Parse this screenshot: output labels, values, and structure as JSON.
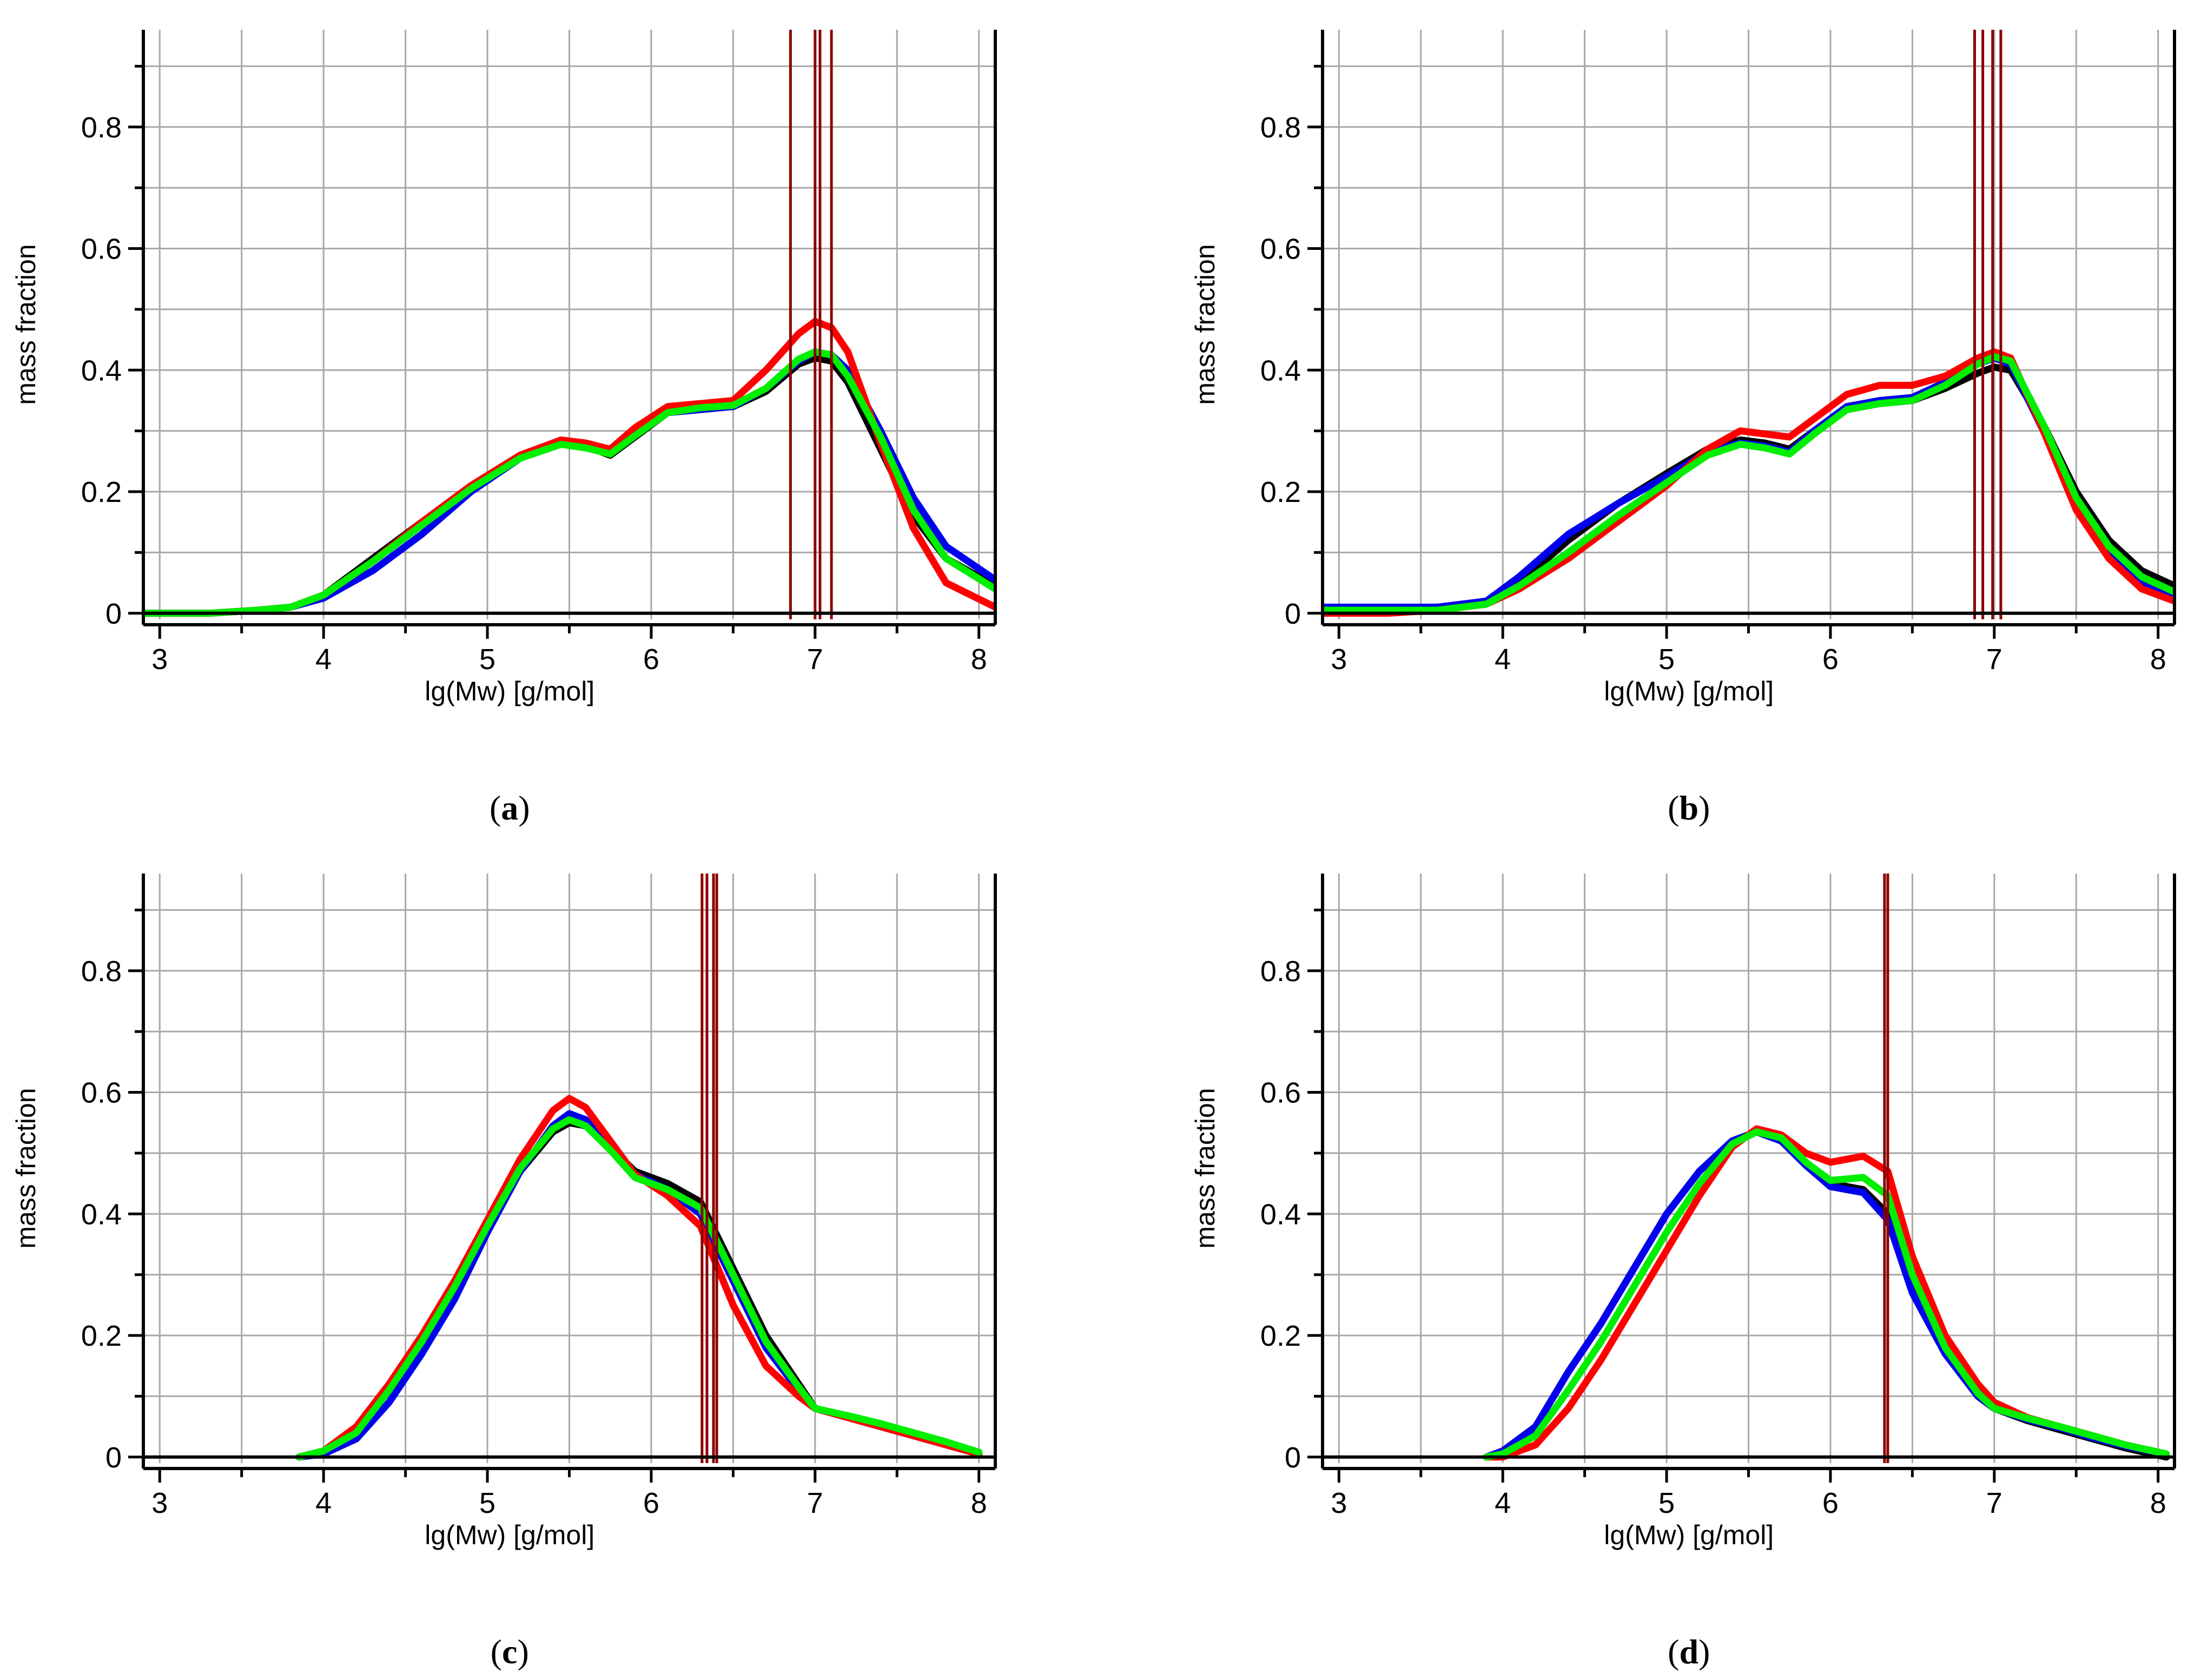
{
  "chart_data": [
    {
      "type": "line",
      "panel_label": "(a)",
      "panel_letter": "a",
      "xlabel": "lg(Mw)  [g/mol]",
      "ylabel": "mass fraction",
      "xlim": [
        2.9,
        8.1
      ],
      "ylim": [
        -0.01,
        0.96
      ],
      "xticks": [
        3,
        4,
        5,
        6,
        7,
        8
      ],
      "yticks": [
        0,
        0.2,
        0.4,
        0.6,
        0.8
      ],
      "grid": true,
      "vertical_lines": [
        6.85,
        7.0,
        7.03,
        7.1
      ],
      "series": [
        {
          "name": "black",
          "color": "#000000",
          "x": [
            2.9,
            3.3,
            3.6,
            3.8,
            4.0,
            4.3,
            4.6,
            4.9,
            5.2,
            5.45,
            5.6,
            5.75,
            5.9,
            6.1,
            6.3,
            6.5,
            6.7,
            6.9,
            7.0,
            7.1,
            7.2,
            7.4,
            7.6,
            7.8,
            8.1
          ],
          "y": [
            0.0,
            0.0,
            0.005,
            0.01,
            0.03,
            0.09,
            0.15,
            0.21,
            0.26,
            0.285,
            0.275,
            0.26,
            0.29,
            0.33,
            0.34,
            0.34,
            0.365,
            0.41,
            0.42,
            0.415,
            0.38,
            0.27,
            0.16,
            0.09,
            0.045
          ]
        },
        {
          "name": "blue",
          "color": "#0000ee",
          "x": [
            2.9,
            3.3,
            3.6,
            3.8,
            4.0,
            4.3,
            4.6,
            4.9,
            5.2,
            5.45,
            5.6,
            5.75,
            5.9,
            6.1,
            6.3,
            6.5,
            6.7,
            6.9,
            7.0,
            7.1,
            7.2,
            7.4,
            7.6,
            7.8,
            8.1
          ],
          "y": [
            0.0,
            0.0,
            0.005,
            0.01,
            0.025,
            0.07,
            0.13,
            0.2,
            0.255,
            0.28,
            0.275,
            0.265,
            0.295,
            0.33,
            0.335,
            0.34,
            0.37,
            0.415,
            0.43,
            0.425,
            0.4,
            0.3,
            0.19,
            0.11,
            0.055
          ]
        },
        {
          "name": "red",
          "color": "#ff0000",
          "x": [
            2.9,
            3.3,
            3.6,
            3.8,
            4.0,
            4.3,
            4.6,
            4.9,
            5.2,
            5.45,
            5.6,
            5.75,
            5.9,
            6.1,
            6.3,
            6.5,
            6.7,
            6.9,
            7.0,
            7.1,
            7.2,
            7.4,
            7.6,
            7.8,
            8.1
          ],
          "y": [
            0.0,
            0.0,
            0.005,
            0.01,
            0.03,
            0.085,
            0.15,
            0.21,
            0.26,
            0.285,
            0.28,
            0.27,
            0.305,
            0.34,
            0.345,
            0.35,
            0.4,
            0.46,
            0.48,
            0.47,
            0.43,
            0.28,
            0.14,
            0.05,
            0.01
          ]
        },
        {
          "name": "green",
          "color": "#00ee00",
          "x": [
            2.9,
            3.3,
            3.6,
            3.8,
            4.0,
            4.3,
            4.6,
            4.9,
            5.2,
            5.45,
            5.6,
            5.75,
            5.9,
            6.1,
            6.3,
            6.5,
            6.7,
            6.9,
            7.0,
            7.1,
            7.2,
            7.4,
            7.6,
            7.8,
            8.1
          ],
          "y": [
            0.0,
            0.0,
            0.005,
            0.01,
            0.03,
            0.085,
            0.145,
            0.205,
            0.255,
            0.278,
            0.272,
            0.262,
            0.292,
            0.33,
            0.338,
            0.342,
            0.37,
            0.418,
            0.43,
            0.425,
            0.39,
            0.29,
            0.17,
            0.09,
            0.04
          ]
        }
      ]
    },
    {
      "type": "line",
      "panel_label": "(b)",
      "panel_letter": "b",
      "xlabel": "lg(Mw)  [g/mol]",
      "ylabel": "mass fraction",
      "xlim": [
        2.9,
        8.1
      ],
      "ylim": [
        -0.01,
        0.96
      ],
      "xticks": [
        3,
        4,
        5,
        6,
        7,
        8
      ],
      "yticks": [
        0,
        0.2,
        0.4,
        0.6,
        0.8
      ],
      "grid": true,
      "vertical_lines": [
        6.88,
        6.93,
        6.99,
        7.04
      ],
      "series": [
        {
          "name": "black",
          "color": "#000000",
          "x": [
            2.9,
            3.3,
            3.6,
            3.9,
            4.1,
            4.4,
            4.7,
            5.0,
            5.25,
            5.45,
            5.6,
            5.75,
            5.9,
            6.1,
            6.3,
            6.5,
            6.7,
            6.9,
            7.0,
            7.1,
            7.3,
            7.5,
            7.7,
            7.9,
            8.1
          ],
          "y": [
            0.005,
            0.005,
            0.005,
            0.015,
            0.05,
            0.12,
            0.18,
            0.23,
            0.27,
            0.285,
            0.28,
            0.27,
            0.3,
            0.335,
            0.345,
            0.35,
            0.37,
            0.395,
            0.405,
            0.4,
            0.31,
            0.2,
            0.12,
            0.07,
            0.045
          ]
        },
        {
          "name": "blue",
          "color": "#0000ee",
          "x": [
            2.9,
            3.3,
            3.6,
            3.9,
            4.1,
            4.4,
            4.7,
            5.0,
            5.25,
            5.45,
            5.6,
            5.75,
            5.9,
            6.1,
            6.3,
            6.5,
            6.7,
            6.9,
            7.0,
            7.1,
            7.3,
            7.5,
            7.7,
            7.9,
            8.1
          ],
          "y": [
            0.01,
            0.01,
            0.01,
            0.02,
            0.06,
            0.13,
            0.18,
            0.225,
            0.265,
            0.28,
            0.275,
            0.265,
            0.3,
            0.34,
            0.35,
            0.355,
            0.38,
            0.41,
            0.42,
            0.41,
            0.3,
            0.18,
            0.1,
            0.05,
            0.03
          ]
        },
        {
          "name": "red",
          "color": "#ff0000",
          "x": [
            2.9,
            3.3,
            3.6,
            3.9,
            4.1,
            4.4,
            4.7,
            5.0,
            5.25,
            5.45,
            5.6,
            5.75,
            5.9,
            6.1,
            6.3,
            6.5,
            6.7,
            6.9,
            7.0,
            7.1,
            7.3,
            7.5,
            7.7,
            7.9,
            8.1
          ],
          "y": [
            0.0,
            0.0,
            0.005,
            0.015,
            0.04,
            0.09,
            0.15,
            0.21,
            0.27,
            0.3,
            0.295,
            0.29,
            0.32,
            0.36,
            0.375,
            0.375,
            0.39,
            0.42,
            0.43,
            0.42,
            0.3,
            0.17,
            0.09,
            0.04,
            0.02
          ]
        },
        {
          "name": "green",
          "color": "#00ee00",
          "x": [
            2.9,
            3.3,
            3.6,
            3.9,
            4.1,
            4.4,
            4.7,
            5.0,
            5.25,
            5.45,
            5.6,
            5.75,
            5.9,
            6.1,
            6.3,
            6.5,
            6.7,
            6.9,
            7.0,
            7.1,
            7.3,
            7.5,
            7.7,
            7.9,
            8.1
          ],
          "y": [
            0.005,
            0.005,
            0.005,
            0.015,
            0.045,
            0.1,
            0.16,
            0.215,
            0.26,
            0.278,
            0.272,
            0.262,
            0.295,
            0.335,
            0.345,
            0.35,
            0.375,
            0.41,
            0.422,
            0.415,
            0.31,
            0.19,
            0.11,
            0.06,
            0.035
          ]
        }
      ]
    },
    {
      "type": "line",
      "panel_label": "(c)",
      "panel_letter": "c",
      "xlabel": "lg(Mw)  [g/mol]",
      "ylabel": "mass fraction",
      "xlim": [
        2.9,
        8.1
      ],
      "ylim": [
        -0.01,
        0.96
      ],
      "xticks": [
        3,
        4,
        5,
        6,
        7,
        8
      ],
      "yticks": [
        0,
        0.2,
        0.4,
        0.6,
        0.8
      ],
      "grid": true,
      "vertical_lines": [
        6.31,
        6.34,
        6.38,
        6.4
      ],
      "series": [
        {
          "name": "black",
          "color": "#000000",
          "x": [
            3.85,
            4.0,
            4.2,
            4.4,
            4.6,
            4.8,
            5.0,
            5.2,
            5.4,
            5.5,
            5.6,
            5.75,
            5.9,
            6.1,
            6.3,
            6.5,
            6.7,
            6.9,
            7.0,
            7.2,
            7.4,
            7.6,
            7.8,
            8.0
          ],
          "y": [
            0.0,
            0.01,
            0.04,
            0.11,
            0.19,
            0.28,
            0.38,
            0.47,
            0.535,
            0.55,
            0.545,
            0.51,
            0.47,
            0.45,
            0.42,
            0.31,
            0.2,
            0.12,
            0.08,
            0.065,
            0.05,
            0.035,
            0.02,
            0.005
          ]
        },
        {
          "name": "blue",
          "color": "#0000ee",
          "x": [
            3.85,
            4.0,
            4.2,
            4.4,
            4.6,
            4.8,
            5.0,
            5.2,
            5.4,
            5.5,
            5.6,
            5.75,
            5.9,
            6.1,
            6.3,
            6.5,
            6.7,
            6.9,
            7.0,
            7.2,
            7.4,
            7.6,
            7.8,
            8.0
          ],
          "y": [
            0.0,
            0.005,
            0.03,
            0.09,
            0.17,
            0.26,
            0.37,
            0.47,
            0.545,
            0.565,
            0.555,
            0.51,
            0.465,
            0.44,
            0.4,
            0.29,
            0.18,
            0.11,
            0.08,
            0.065,
            0.05,
            0.035,
            0.02,
            0.005
          ]
        },
        {
          "name": "red",
          "color": "#ff0000",
          "x": [
            3.85,
            4.0,
            4.2,
            4.4,
            4.6,
            4.8,
            5.0,
            5.2,
            5.4,
            5.5,
            5.6,
            5.75,
            5.9,
            6.1,
            6.3,
            6.5,
            6.7,
            6.9,
            7.0,
            7.2,
            7.4,
            7.6,
            7.8,
            8.0
          ],
          "y": [
            0.0,
            0.01,
            0.05,
            0.12,
            0.2,
            0.29,
            0.39,
            0.49,
            0.57,
            0.59,
            0.575,
            0.52,
            0.465,
            0.43,
            0.38,
            0.25,
            0.15,
            0.1,
            0.08,
            0.065,
            0.05,
            0.035,
            0.02,
            0.005
          ]
        },
        {
          "name": "green",
          "color": "#00ee00",
          "x": [
            3.85,
            4.0,
            4.2,
            4.4,
            4.6,
            4.8,
            5.0,
            5.2,
            5.4,
            5.5,
            5.6,
            5.75,
            5.9,
            6.1,
            6.3,
            6.5,
            6.7,
            6.9,
            7.0,
            7.2,
            7.4,
            7.6,
            7.8,
            8.0
          ],
          "y": [
            0.0,
            0.01,
            0.04,
            0.11,
            0.19,
            0.28,
            0.38,
            0.475,
            0.54,
            0.555,
            0.545,
            0.505,
            0.46,
            0.44,
            0.41,
            0.3,
            0.19,
            0.115,
            0.08,
            0.068,
            0.055,
            0.04,
            0.025,
            0.008
          ]
        }
      ]
    },
    {
      "type": "line",
      "panel_label": "(d)",
      "panel_letter": "d",
      "xlabel": "lg(Mw)  [g/mol]",
      "ylabel": "mass fraction",
      "xlim": [
        2.9,
        8.1
      ],
      "ylim": [
        -0.01,
        0.96
      ],
      "xticks": [
        3,
        4,
        5,
        6,
        7,
        8
      ],
      "yticks": [
        0,
        0.2,
        0.4,
        0.6,
        0.8
      ],
      "grid": true,
      "vertical_lines": [
        6.33,
        6.35
      ],
      "series": [
        {
          "name": "black",
          "color": "#000000",
          "x": [
            3.9,
            4.0,
            4.2,
            4.4,
            4.6,
            4.8,
            5.0,
            5.2,
            5.4,
            5.55,
            5.7,
            5.85,
            6.0,
            6.2,
            6.35,
            6.5,
            6.7,
            6.9,
            7.0,
            7.2,
            7.4,
            7.6,
            7.8,
            8.05
          ],
          "y": [
            0.0,
            0.01,
            0.05,
            0.14,
            0.22,
            0.31,
            0.4,
            0.47,
            0.52,
            0.535,
            0.52,
            0.48,
            0.45,
            0.44,
            0.4,
            0.28,
            0.17,
            0.1,
            0.08,
            0.06,
            0.045,
            0.03,
            0.015,
            0.0
          ]
        },
        {
          "name": "blue",
          "color": "#0000ee",
          "x": [
            3.9,
            4.0,
            4.2,
            4.4,
            4.6,
            4.8,
            5.0,
            5.2,
            5.4,
            5.55,
            5.7,
            5.85,
            6.0,
            6.2,
            6.35,
            6.5,
            6.7,
            6.9,
            7.0,
            7.2,
            7.4,
            7.6,
            7.8,
            8.05
          ],
          "y": [
            0.0,
            0.01,
            0.05,
            0.14,
            0.22,
            0.31,
            0.4,
            0.47,
            0.52,
            0.535,
            0.52,
            0.48,
            0.445,
            0.435,
            0.39,
            0.27,
            0.17,
            0.1,
            0.08,
            0.062,
            0.048,
            0.032,
            0.018,
            0.005
          ]
        },
        {
          "name": "red",
          "color": "#ff0000",
          "x": [
            3.9,
            4.0,
            4.2,
            4.4,
            4.6,
            4.8,
            5.0,
            5.2,
            5.4,
            5.55,
            5.7,
            5.85,
            6.0,
            6.2,
            6.35,
            6.5,
            6.7,
            6.9,
            7.0,
            7.2,
            7.4,
            7.6,
            7.8,
            8.05
          ],
          "y": [
            0.0,
            0.0,
            0.02,
            0.08,
            0.16,
            0.25,
            0.34,
            0.43,
            0.51,
            0.54,
            0.53,
            0.5,
            0.485,
            0.495,
            0.47,
            0.33,
            0.2,
            0.12,
            0.09,
            0.065,
            0.05,
            0.035,
            0.02,
            0.005
          ]
        },
        {
          "name": "green",
          "color": "#00ee00",
          "x": [
            3.9,
            4.0,
            4.2,
            4.4,
            4.6,
            4.8,
            5.0,
            5.2,
            5.4,
            5.55,
            5.7,
            5.85,
            6.0,
            6.2,
            6.35,
            6.5,
            6.7,
            6.9,
            7.0,
            7.2,
            7.4,
            7.6,
            7.8,
            8.05
          ],
          "y": [
            0.0,
            0.005,
            0.035,
            0.11,
            0.19,
            0.28,
            0.37,
            0.45,
            0.515,
            0.535,
            0.525,
            0.485,
            0.455,
            0.46,
            0.43,
            0.3,
            0.18,
            0.105,
            0.08,
            0.064,
            0.05,
            0.035,
            0.02,
            0.005
          ]
        }
      ]
    }
  ]
}
